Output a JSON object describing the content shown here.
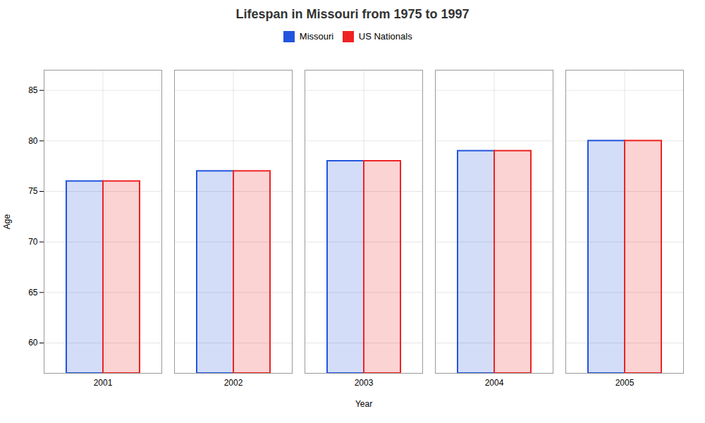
{
  "chart_data": {
    "type": "bar",
    "title": "Lifespan in Missouri from 1975 to 1997",
    "xlabel": "Year",
    "ylabel": "Age",
    "categories": [
      "2001",
      "2002",
      "2003",
      "2004",
      "2005"
    ],
    "series": [
      {
        "name": "Missouri",
        "color": "#2255dd",
        "values": [
          76,
          77,
          78,
          79,
          80
        ]
      },
      {
        "name": "US Nationals",
        "color": "#ee2222",
        "values": [
          76,
          77,
          78,
          79,
          80
        ]
      }
    ],
    "ylim": [
      57,
      87
    ],
    "yticks": [
      60,
      65,
      70,
      75,
      80,
      85
    ],
    "grid": true,
    "legend": "top"
  }
}
